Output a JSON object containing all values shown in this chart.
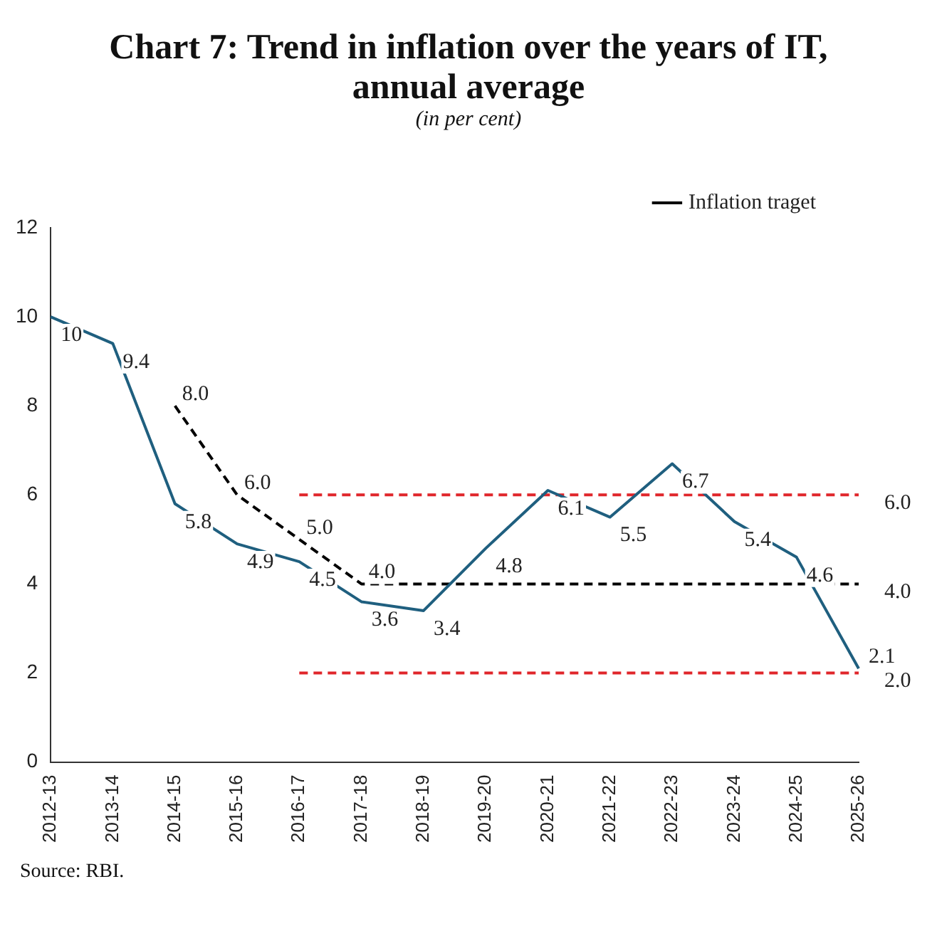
{
  "chart_data": {
    "type": "line",
    "title": "Chart 7: Trend in inflation over the years of IT, annual average",
    "subtitle": "(in per cent)",
    "categories": [
      "2012-13",
      "2013-14",
      "2014-15",
      "2015-16",
      "2016-17",
      "2017-18",
      "2018-19",
      "2019-20",
      "2020-21",
      "2021-22",
      "2022-23",
      "2023-24",
      "2024-25",
      "2025-26"
    ],
    "series": [
      {
        "color": "#1f5f7f",
        "line_style": "solid",
        "values": [
          10,
          9.4,
          5.8,
          4.9,
          4.5,
          3.6,
          3.4,
          4.8,
          6.1,
          5.5,
          6.7,
          5.4,
          4.6,
          2.1
        ],
        "value_labels": [
          "10",
          "9.4",
          "5.8",
          "4.9",
          "4.5",
          "3.6",
          "3.4",
          "4.8",
          "6.1",
          "5.5",
          "6.7",
          "5.4",
          "4.6",
          "2.1"
        ]
      },
      {
        "name": "Inflation traget",
        "color": "#000000",
        "line_style": "dashed",
        "values": [
          null,
          null,
          8.0,
          6.0,
          5.0,
          4.0,
          4.0,
          4.0,
          4.0,
          4.0,
          4.0,
          4.0,
          4.0,
          4.0
        ],
        "value_labels": [
          null,
          null,
          "8.0",
          "6.0",
          "5.0",
          "4.0",
          null,
          null,
          null,
          null,
          null,
          null,
          null,
          "4.0"
        ]
      },
      {
        "color": "#e0262b",
        "line_style": "dashed",
        "values": [
          null,
          null,
          null,
          null,
          6.0,
          6.0,
          6.0,
          6.0,
          6.0,
          6.0,
          6.0,
          6.0,
          6.0,
          6.0
        ],
        "value_labels": [
          null,
          null,
          null,
          null,
          null,
          null,
          null,
          null,
          null,
          null,
          null,
          null,
          null,
          "6.0"
        ]
      },
      {
        "color": "#e0262b",
        "line_style": "dashed",
        "values": [
          null,
          null,
          null,
          null,
          2.0,
          2.0,
          2.0,
          2.0,
          2.0,
          2.0,
          2.0,
          2.0,
          2.0,
          2.0
        ],
        "value_labels": [
          null,
          null,
          null,
          null,
          null,
          null,
          null,
          null,
          null,
          null,
          null,
          null,
          null,
          "2.0"
        ]
      }
    ],
    "ylim": [
      0,
      12
    ],
    "yticks": [
      0,
      2,
      4,
      6,
      8,
      10,
      12
    ],
    "grid": false,
    "legend": "top right",
    "marker": "none",
    "annotations": [
      "Source: RBI."
    ]
  }
}
